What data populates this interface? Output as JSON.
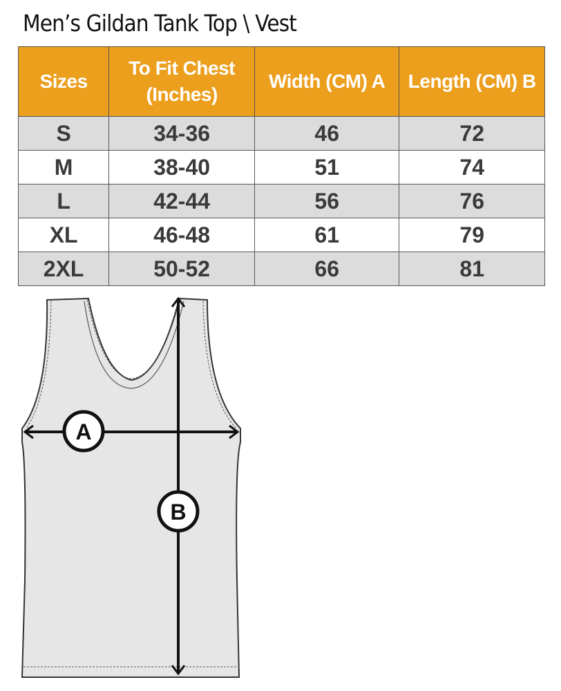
{
  "title": "Men’s Gildan Tank Top \\ Vest",
  "table": {
    "headers": [
      "Sizes",
      "To Fit Chest (Inches)",
      "Width (CM) A",
      "Length  (CM) B"
    ],
    "rows": [
      [
        "S",
        "34-36",
        "46",
        "72"
      ],
      [
        "M",
        "38-40",
        "51",
        "74"
      ],
      [
        "L",
        "42-44",
        "56",
        "76"
      ],
      [
        "XL",
        "46-48",
        "61",
        "79"
      ],
      [
        "2XL",
        "50-52",
        "66",
        "81"
      ]
    ]
  },
  "diagram": {
    "label_a": "A",
    "label_b": "B"
  },
  "colors": {
    "header": "#ec9e1d",
    "row_alt": "#dcdcdc"
  }
}
